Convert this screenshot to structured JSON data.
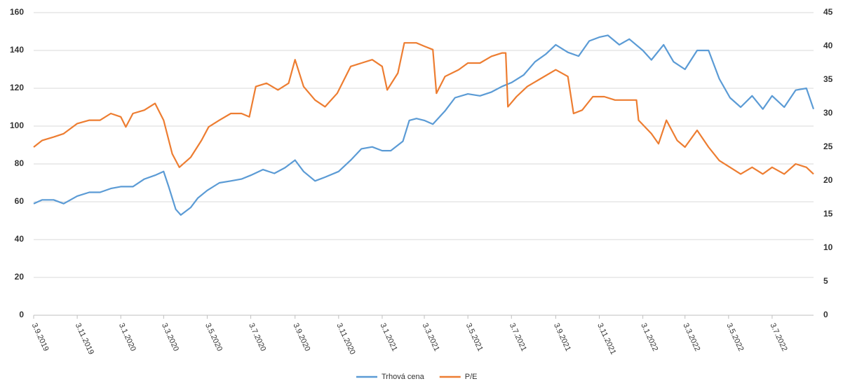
{
  "chart_data": {
    "type": "line",
    "xlim": [
      "3.9.2019",
      "30.8.2022"
    ],
    "xticks": [
      "3.9.2019",
      "3.11.2019",
      "3.1.2020",
      "3.3.2020",
      "3.5.2020",
      "3.7.2020",
      "3.9.2020",
      "3.11.2020",
      "3.1.2021",
      "3.3.2021",
      "3.5.2021",
      "3.7.2021",
      "3.9.2021",
      "3.11.2021",
      "3.1.2022",
      "3.3.2022",
      "3.5.2022",
      "3.7.2022"
    ],
    "ylim": [
      0,
      160
    ],
    "yticks": [
      0,
      20,
      40,
      60,
      80,
      100,
      120,
      140,
      160
    ],
    "y2lim": [
      0,
      45
    ],
    "y2ticks": [
      0,
      5,
      10,
      15,
      20,
      25,
      30,
      35,
      40,
      45
    ],
    "grid": true,
    "legend": "bottom",
    "series": [
      {
        "name": "Trhová cena",
        "color": "#5b9bd5",
        "axis": "y",
        "x": [
          "3.9.2019",
          "15.9.2019",
          "1.10.2019",
          "15.10.2019",
          "3.11.2019",
          "20.11.2019",
          "5.12.2019",
          "20.12.2019",
          "3.1.2020",
          "20.1.2020",
          "5.2.2020",
          "20.2.2020",
          "3.3.2020",
          "10.3.2020",
          "20.3.2020",
          "27.3.2020",
          "10.4.2020",
          "20.4.2020",
          "3.5.2020",
          "20.5.2020",
          "5.6.2020",
          "20.6.2020",
          "3.7.2020",
          "20.7.2020",
          "5.8.2020",
          "20.8.2020",
          "3.9.2020",
          "15.9.2020",
          "1.10.2020",
          "15.10.2020",
          "3.11.2020",
          "20.11.2020",
          "5.12.2020",
          "20.12.2020",
          "3.1.2021",
          "15.1.2021",
          "1.2.2021",
          "10.2.2021",
          "20.2.2021",
          "3.3.2021",
          "15.3.2021",
          "1.4.2021",
          "15.4.2021",
          "3.5.2021",
          "20.5.2021",
          "5.6.2021",
          "20.6.2021",
          "3.7.2021",
          "20.7.2021",
          "5.8.2021",
          "20.8.2021",
          "3.9.2021",
          "20.9.2021",
          "5.10.2021",
          "20.10.2021",
          "3.11.2021",
          "15.11.2021",
          "1.12.2021",
          "15.12.2021",
          "3.1.2022",
          "15.1.2022",
          "1.2.2022",
          "15.2.2022",
          "3.3.2022",
          "20.3.2022",
          "5.4.2022",
          "20.4.2022",
          "5.5.2022",
          "20.5.2022",
          "5.6.2022",
          "20.6.2022",
          "3.7.2022",
          "20.7.2022",
          "5.8.2022",
          "20.8.2022",
          "30.8.2022"
        ],
        "values": [
          59,
          61,
          61,
          59,
          63,
          65,
          65,
          67,
          68,
          68,
          72,
          74,
          76,
          68,
          56,
          53,
          57,
          62,
          66,
          70,
          71,
          72,
          74,
          77,
          75,
          78,
          82,
          76,
          71,
          73,
          76,
          82,
          88,
          89,
          87,
          87,
          92,
          103,
          104,
          103,
          101,
          108,
          115,
          117,
          116,
          118,
          121,
          123,
          127,
          134,
          138,
          143,
          139,
          137,
          145,
          147,
          148,
          143,
          146,
          140,
          135,
          143,
          134,
          130,
          140,
          140,
          125,
          115,
          110,
          116,
          109,
          116,
          110,
          119,
          120,
          109
        ]
      },
      {
        "name": "P/E",
        "color": "#ed7d31",
        "axis": "y2",
        "x": [
          "3.9.2019",
          "15.9.2019",
          "1.10.2019",
          "15.10.2019",
          "3.11.2019",
          "20.11.2019",
          "5.12.2019",
          "20.12.2019",
          "3.1.2020",
          "10.1.2020",
          "20.1.2020",
          "5.2.2020",
          "20.2.2020",
          "3.3.2020",
          "15.3.2020",
          "25.3.2020",
          "10.4.2020",
          "25.4.2020",
          "5.5.2020",
          "20.5.2020",
          "5.6.2020",
          "20.6.2020",
          "1.7.2020",
          "10.7.2020",
          "25.7.2020",
          "10.8.2020",
          "25.8.2020",
          "3.9.2020",
          "15.9.2020",
          "1.10.2020",
          "15.10.2020",
          "1.11.2020",
          "20.11.2020",
          "5.12.2020",
          "20.12.2020",
          "3.1.2021",
          "10.1.2021",
          "25.1.2021",
          "3.2.2021",
          "20.2.2021",
          "3.3.2021",
          "15.3.2021",
          "20.3.2021",
          "1.4.2021",
          "20.4.2021",
          "3.5.2021",
          "20.5.2021",
          "5.6.2021",
          "20.6.2021",
          "25.6.2021",
          "28.6.2021",
          "10.7.2021",
          "25.7.2021",
          "10.8.2021",
          "3.9.2021",
          "20.9.2021",
          "28.9.2021",
          "10.10.2021",
          "25.10.2021",
          "10.11.2021",
          "25.11.2021",
          "10.12.2021",
          "25.12.2021",
          "28.12.2021",
          "15.1.2022",
          "25.1.2022",
          "5.2.2022",
          "20.2.2022",
          "3.3.2022",
          "20.3.2022",
          "5.4.2022",
          "20.4.2022",
          "5.5.2022",
          "20.5.2022",
          "5.6.2022",
          "20.6.2022",
          "3.7.2022",
          "20.7.2022",
          "5.8.2022",
          "20.8.2022",
          "30.8.2022"
        ],
        "values": [
          25,
          26,
          26.5,
          27,
          28.5,
          29,
          29,
          30,
          29.5,
          28,
          30,
          30.5,
          31.5,
          29,
          24,
          22,
          23.5,
          26,
          28,
          29,
          30,
          30,
          29.5,
          34,
          34.5,
          33.5,
          34.5,
          38,
          34,
          32,
          31,
          33,
          37,
          37.5,
          38,
          37,
          33.5,
          36,
          40.5,
          40.5,
          40,
          39.5,
          33,
          35.5,
          36.5,
          37.5,
          37.5,
          38.5,
          39,
          39,
          31,
          32.5,
          34,
          35,
          36.5,
          35.5,
          30,
          30.5,
          32.5,
          32.5,
          32,
          32,
          32,
          29,
          27,
          25.5,
          29,
          26,
          25,
          27.5,
          25,
          23,
          22,
          21,
          22,
          21,
          22,
          21,
          22.5,
          22,
          21
        ]
      }
    ]
  }
}
